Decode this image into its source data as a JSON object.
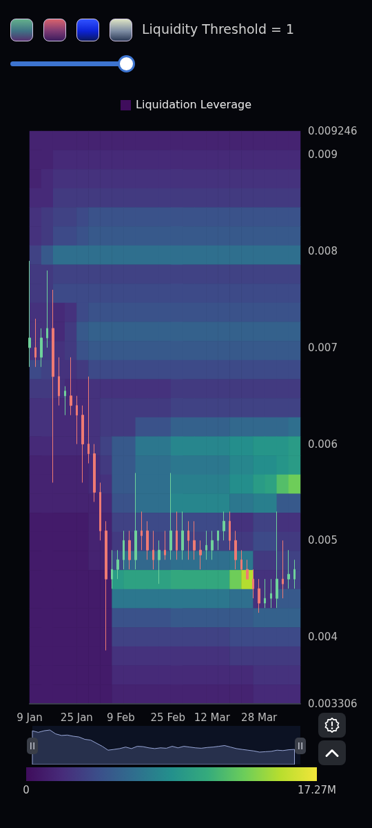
{
  "chart_data": [
    {
      "type": "heatmap",
      "clabel": "Liquidation Leverage",
      "clim": [
        0,
        17.27
      ],
      "cticks": [
        0,
        {
          "value": 17.27,
          "label": "17.27M"
        }
      ],
      "categories": [
        null,
        null,
        null,
        null,
        null,
        null,
        null,
        null,
        null,
        null,
        null,
        null,
        null,
        null,
        null,
        null,
        null,
        null,
        null,
        null,
        null,
        null,
        null
      ],
      "y_categories": [
        null,
        null,
        null,
        null,
        null,
        null,
        null,
        null,
        null,
        null,
        null,
        null,
        null,
        null,
        null,
        null,
        null,
        null,
        null,
        null,
        null,
        null,
        null,
        null,
        null,
        null,
        null,
        null,
        null,
        null
      ],
      "cells": [
        [
          1.5,
          1.5,
          1.5,
          1.5,
          1.5,
          1.5,
          1.5,
          1.5,
          1.5,
          1.5,
          1.5,
          1.5,
          1.5,
          1.5,
          1.5,
          1.5,
          1.5,
          1.5,
          1.5,
          1.5,
          1.5,
          1.5,
          1.5
        ],
        [
          1.5,
          1.5,
          2,
          2,
          2,
          2,
          2,
          2,
          2,
          2,
          2,
          2,
          2,
          2,
          2,
          2,
          2,
          2,
          2,
          2,
          2,
          2,
          2
        ],
        [
          1.5,
          2,
          2.5,
          2.5,
          2.5,
          2.5,
          2.5,
          2.5,
          2.5,
          2.5,
          2.5,
          2.5,
          2.5,
          2.5,
          2.5,
          2.5,
          2.5,
          2.5,
          2.5,
          2.5,
          2.5,
          2.5,
          2.5
        ],
        [
          2,
          2,
          3,
          3,
          3,
          3,
          3,
          3,
          3,
          3,
          3,
          3,
          3,
          3,
          3,
          3,
          3,
          3,
          3,
          3,
          3,
          3,
          3
        ],
        [
          2.5,
          3,
          3.5,
          3.5,
          4,
          4.5,
          4.5,
          4.5,
          4.5,
          4.5,
          4.5,
          4.5,
          4.5,
          4.5,
          4.5,
          4.5,
          4.5,
          4.5,
          4.5,
          4.5,
          4.5,
          4.5,
          4.5
        ],
        [
          2.5,
          3,
          4,
          4,
          4.5,
          5,
          5,
          5,
          5,
          5,
          5,
          5,
          5,
          5,
          5,
          5,
          5,
          5,
          5,
          5,
          5,
          5,
          5
        ],
        [
          3.5,
          5,
          6.5,
          6.5,
          6.5,
          6.5,
          6.5,
          6.5,
          6.5,
          6.5,
          6.5,
          6.5,
          6.5,
          6.5,
          6.5,
          6.5,
          6.5,
          6.5,
          6.5,
          6.5,
          6.5,
          6.5,
          6.5
        ],
        [
          3,
          3,
          3.5,
          3.5,
          3.5,
          3.5,
          3.5,
          3.5,
          3.5,
          3.5,
          3.5,
          3.5,
          3.5,
          3.5,
          3.5,
          3.5,
          3.5,
          3.5,
          3.5,
          3.5,
          3.5,
          3.5,
          3.5
        ],
        [
          3,
          3,
          4,
          4,
          4,
          4,
          4,
          4,
          4,
          4,
          4,
          4,
          4,
          4,
          4,
          4,
          4,
          4,
          4,
          4,
          4,
          4,
          4
        ],
        [
          2.5,
          2.5,
          2,
          2.5,
          4,
          4.5,
          4.5,
          4.5,
          4.5,
          4.5,
          4.5,
          4.5,
          4.5,
          4.5,
          4.5,
          4.5,
          4.5,
          4.5,
          4.5,
          4.5,
          4.5,
          4.5,
          4.5
        ],
        [
          2.5,
          2.5,
          2,
          3,
          5,
          5.5,
          5.5,
          5.5,
          5.5,
          5.5,
          5.5,
          5.5,
          5.5,
          5.5,
          5.5,
          5.5,
          5.5,
          5.5,
          5.5,
          5.5,
          5.5,
          5.5,
          5.5
        ],
        [
          2.5,
          3,
          2.5,
          3,
          4.5,
          5,
          5,
          5,
          5,
          5,
          5,
          5,
          5,
          5,
          5,
          5,
          5,
          5,
          5,
          5,
          5,
          5,
          5
        ],
        [
          4,
          3.5,
          2.5,
          2.5,
          3,
          4,
          4,
          4,
          4,
          4,
          4,
          4,
          4,
          4,
          4,
          4,
          4,
          4,
          4,
          4,
          4,
          4,
          4
        ],
        [
          3,
          3,
          2.5,
          2,
          2,
          2.5,
          2.5,
          2.5,
          2.5,
          2.5,
          2.5,
          2.5,
          3,
          3,
          3,
          3,
          3,
          3,
          3,
          3,
          3,
          3,
          3
        ],
        [
          2.5,
          2.5,
          2,
          2,
          2,
          2.5,
          3,
          3,
          3,
          3,
          3,
          3,
          3.5,
          3.5,
          3.5,
          3.5,
          3.5,
          3.5,
          3.5,
          3.5,
          3.5,
          3.5,
          3.5
        ],
        [
          2.5,
          2.5,
          2,
          2,
          2,
          2.5,
          3,
          3,
          3,
          4.5,
          4.5,
          4.5,
          5.5,
          5.5,
          5.5,
          5.5,
          5.5,
          6,
          6,
          6,
          6,
          6,
          6.5
        ],
        [
          2,
          2,
          2,
          2,
          2,
          2.5,
          3.5,
          5,
          5,
          7,
          7,
          7,
          8,
          8,
          8,
          8,
          8,
          8.5,
          8.5,
          9,
          9,
          9,
          9.5
        ],
        [
          1.5,
          1.5,
          1.5,
          1.5,
          1.5,
          2,
          3,
          5,
          5,
          6.5,
          6.5,
          6.5,
          7,
          7,
          7,
          7,
          7,
          8,
          8,
          8.5,
          8.5,
          9,
          9.5
        ],
        [
          1.5,
          1.5,
          1.5,
          1.5,
          1.5,
          2,
          2.5,
          5,
          5,
          6.5,
          6.5,
          6.5,
          7.5,
          7.5,
          7.5,
          7.5,
          7.5,
          8.5,
          8.5,
          9.5,
          10,
          12,
          13
        ],
        [
          1.5,
          1.5,
          1.5,
          1.5,
          1.5,
          1.5,
          2,
          4.5,
          4.5,
          6.5,
          6.5,
          6.5,
          8,
          8,
          8,
          8,
          8,
          7,
          7,
          7.5,
          7.5,
          5,
          5
        ],
        [
          1,
          1,
          1,
          1,
          1,
          1.5,
          1.5,
          3.5,
          3.5,
          4,
          4,
          4,
          4,
          4,
          4,
          4,
          4,
          2.5,
          2.5,
          3.5,
          3.5,
          2.5,
          2.5
        ],
        [
          1,
          1,
          1,
          1,
          1,
          1.5,
          1.5,
          3,
          3,
          3.5,
          3.5,
          3.5,
          3.5,
          3.5,
          3.5,
          3.5,
          3.5,
          3,
          3,
          4,
          4,
          3,
          3
        ],
        [
          1,
          1,
          1,
          1,
          1,
          1.5,
          1.5,
          4,
          6,
          6,
          6,
          6,
          6.5,
          6.5,
          6.5,
          6.5,
          6.5,
          7,
          7,
          3,
          3,
          3.5,
          3.5
        ],
        [
          1,
          1,
          1,
          1,
          1,
          1,
          1,
          9.5,
          10,
          10,
          10,
          10,
          10.5,
          10.5,
          10.5,
          10.5,
          10.5,
          13,
          15,
          2.5,
          2.5,
          3,
          3.5
        ],
        [
          1,
          1,
          1,
          1,
          1,
          1,
          1,
          7,
          7,
          7,
          7,
          7,
          7,
          7,
          7,
          7,
          7,
          6.5,
          6.5,
          2.5,
          2.5,
          5,
          5
        ],
        [
          1,
          1,
          1,
          1,
          1,
          1,
          1,
          4.5,
          4.5,
          4.5,
          4.5,
          4.5,
          5,
          5,
          5,
          5,
          5,
          5,
          5,
          5.5,
          5.5,
          5.5,
          5.5
        ],
        [
          1,
          1,
          1,
          1,
          1,
          1,
          1,
          3.5,
          3.5,
          3.5,
          3.5,
          3.5,
          3.5,
          3.5,
          3.5,
          3.5,
          3.5,
          4,
          4,
          4,
          4,
          4,
          4
        ],
        [
          1,
          1,
          1,
          1,
          1,
          1,
          1,
          2.5,
          2.5,
          2.5,
          2.5,
          2.5,
          2.5,
          2.5,
          2.5,
          2.5,
          2.5,
          3,
          3,
          3,
          3,
          3,
          3
        ],
        [
          1,
          1,
          1,
          1,
          1,
          1,
          1,
          2,
          2,
          2,
          2,
          2,
          2,
          2,
          2,
          2,
          2,
          2,
          2,
          2.5,
          2.5,
          2.5,
          2.5
        ],
        [
          1,
          1,
          1,
          1,
          1,
          1,
          1,
          1.5,
          1.5,
          1.5,
          1.5,
          1.5,
          1.5,
          1.5,
          1.5,
          1.5,
          1.5,
          1.5,
          1.5,
          2,
          2,
          2,
          2
        ]
      ]
    },
    {
      "type": "candlestick",
      "annotations": [
        "Liquidity Threshold = 1"
      ],
      "xlim": [
        "--01-09",
        "--04-11"
      ],
      "xticks": [
        {
          "value": "--01-09",
          "label": "9 Jan"
        },
        {
          "value": "--01-25",
          "label": "25 Jan"
        },
        {
          "value": "--02-09",
          "label": "9 Feb"
        },
        {
          "value": "--02-25",
          "label": "25 Feb"
        },
        {
          "value": "--03-12",
          "label": "12 Mar"
        },
        {
          "value": "--03-28",
          "label": "28 Mar"
        }
      ],
      "ylim": [
        0.003306,
        0.009246
      ],
      "yticks": [
        0.003306,
        0.004,
        0.005,
        0.006,
        0.007,
        0.008,
        0.009,
        0.009246
      ],
      "x": [
        "--01-09",
        "--01-11",
        "--01-13",
        "--01-15",
        "--01-17",
        "--01-19",
        "--01-21",
        "--01-23",
        "--01-25",
        "--01-27",
        "--01-29",
        "--01-31",
        "--02-02",
        "--02-04",
        "--02-06",
        "--02-08",
        "--02-10",
        "--02-12",
        "--02-14",
        "--02-16",
        "--02-18",
        "--02-20",
        "--02-22",
        "--02-24",
        "--02-26",
        "--02-28",
        "--03-02",
        "--03-04",
        "--03-06",
        "--03-08",
        "--03-10",
        "--03-12",
        "--03-14",
        "--03-16",
        "--03-18",
        "--03-20",
        "--03-22",
        "--03-24",
        "--03-26",
        "--03-28",
        "--03-30",
        "--04-01",
        "--04-03",
        "--04-05",
        "--04-07",
        "--04-09"
      ],
      "ohlc": [
        [
          0.007,
          0.0079,
          0.0068,
          0.0071
        ],
        [
          0.007,
          0.0073,
          0.0068,
          0.0069
        ],
        [
          0.0069,
          0.0072,
          0.0068,
          0.0071
        ],
        [
          0.0071,
          0.0078,
          0.007,
          0.0072
        ],
        [
          0.0072,
          0.0076,
          0.0056,
          0.0067
        ],
        [
          0.0067,
          0.0069,
          0.0064,
          0.0065
        ],
        [
          0.0065,
          0.0066,
          0.0063,
          0.00655
        ],
        [
          0.0065,
          0.0069,
          0.0063,
          0.0064
        ],
        [
          0.0064,
          0.0065,
          0.006,
          0.0063
        ],
        [
          0.0063,
          0.0064,
          0.0056,
          0.006
        ],
        [
          0.006,
          0.0067,
          0.0058,
          0.0059
        ],
        [
          0.0059,
          0.006,
          0.0054,
          0.0055
        ],
        [
          0.0055,
          0.0056,
          0.005,
          0.0051
        ],
        [
          0.0051,
          0.0052,
          0.00386,
          0.0046
        ],
        [
          0.0046,
          0.0049,
          0.0045,
          0.0047
        ],
        [
          0.0047,
          0.0049,
          0.0046,
          0.0048
        ],
        [
          0.0048,
          0.0051,
          0.0047,
          0.005
        ],
        [
          0.005,
          0.0051,
          0.0047,
          0.0048
        ],
        [
          0.0048,
          0.0057,
          0.0047,
          0.0051
        ],
        [
          0.0051,
          0.0053,
          0.0049,
          0.00505
        ],
        [
          0.0051,
          0.0052,
          0.0048,
          0.0049
        ],
        [
          0.0049,
          0.0051,
          0.0047,
          0.0048
        ],
        [
          0.0048,
          0.005,
          0.00455,
          0.0049
        ],
        [
          0.0049,
          0.0051,
          0.0048,
          0.00485
        ],
        [
          0.0049,
          0.0057,
          0.0048,
          0.0051
        ],
        [
          0.0051,
          0.0053,
          0.0048,
          0.0049
        ],
        [
          0.0049,
          0.0053,
          0.0048,
          0.0051
        ],
        [
          0.0051,
          0.0052,
          0.0048,
          0.005
        ],
        [
          0.005,
          0.0052,
          0.0048,
          0.0049
        ],
        [
          0.0049,
          0.005,
          0.0047,
          0.00485
        ],
        [
          0.0049,
          0.0051,
          0.0048,
          0.00495
        ],
        [
          0.0049,
          0.0051,
          0.0048,
          0.005
        ],
        [
          0.005,
          0.0051,
          0.0049,
          0.0051
        ],
        [
          0.0051,
          0.0053,
          0.005,
          0.0052
        ],
        [
          0.0052,
          0.0053,
          0.0049,
          0.005
        ],
        [
          0.005,
          0.0051,
          0.0047,
          0.0048
        ],
        [
          0.0048,
          0.0049,
          0.0047,
          0.0047
        ],
        [
          0.0047,
          0.0048,
          0.0046,
          0.0046
        ],
        [
          0.0046,
          0.0047,
          0.0044,
          0.0045
        ],
        [
          0.0045,
          0.0046,
          0.00425,
          0.00435
        ],
        [
          0.00435,
          0.0046,
          0.0043,
          0.0044
        ],
        [
          0.0044,
          0.0046,
          0.0043,
          0.00445
        ],
        [
          0.0044,
          0.0053,
          0.0043,
          0.0046
        ],
        [
          0.0046,
          0.005,
          0.0044,
          0.00455
        ],
        [
          0.0046,
          0.0049,
          0.0045,
          0.00465
        ],
        [
          0.0046,
          0.0048,
          0.0045,
          0.0047
        ]
      ]
    }
  ]
}
